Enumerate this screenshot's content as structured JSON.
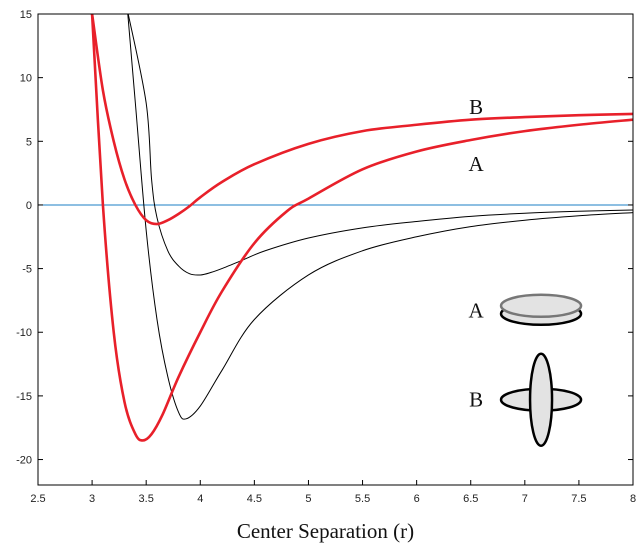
{
  "chart_data": {
    "type": "line",
    "title": "",
    "xlabel": "Center Separation (r)",
    "ylabel": "",
    "xlim": [
      2.5,
      8
    ],
    "ylim": [
      -22,
      15
    ],
    "xticks": [
      "2.5",
      "3",
      "3.5",
      "4",
      "4.5",
      "5",
      "5.5",
      "6",
      "6.5",
      "7",
      "7.5",
      "8"
    ],
    "yticks": [
      "15",
      "10",
      "5",
      "0",
      "-5",
      "-10",
      "-15",
      "-20"
    ],
    "grid": false,
    "zero_line": true,
    "series": [
      {
        "name": "B",
        "color": "#e8202a",
        "style": "thick",
        "x": [
          3.0,
          3.1,
          3.2,
          3.3,
          3.4,
          3.5,
          3.6,
          3.7,
          3.8,
          3.9,
          4.0,
          4.2,
          4.5,
          5.0,
          5.5,
          6.0,
          6.5,
          7.0,
          7.5,
          8.0
        ],
        "y": [
          15,
          9.0,
          5.0,
          2.0,
          0.0,
          -1.2,
          -1.5,
          -1.2,
          -0.7,
          -0.1,
          0.6,
          1.8,
          3.2,
          4.8,
          5.8,
          6.3,
          6.7,
          6.9,
          7.05,
          7.15
        ]
      },
      {
        "name": "A",
        "color": "#e8202a",
        "style": "thick",
        "x": [
          3.0,
          3.1,
          3.2,
          3.3,
          3.4,
          3.47,
          3.55,
          3.65,
          3.8,
          4.0,
          4.2,
          4.5,
          4.8,
          5.0,
          5.5,
          6.0,
          6.5,
          7.0,
          7.5,
          8.0
        ],
        "y": [
          15,
          0.0,
          -10.0,
          -15.5,
          -18.0,
          -18.5,
          -18.0,
          -16.5,
          -13.5,
          -10.0,
          -6.8,
          -3.0,
          -0.5,
          0.5,
          2.8,
          4.2,
          5.1,
          5.8,
          6.3,
          6.7
        ],
        "start_y": 15
      },
      {
        "name": "",
        "color": "#000000",
        "style": "thin",
        "x": [
          3.5,
          3.55,
          3.6,
          3.7,
          3.8,
          3.9,
          4.0,
          4.1,
          4.2,
          4.4,
          4.6,
          5.0,
          5.5,
          6.0,
          6.5,
          7.0,
          7.5,
          8.0
        ],
        "y": [
          8.0,
          2.0,
          -1.0,
          -3.6,
          -4.8,
          -5.4,
          -5.5,
          -5.3,
          -5.0,
          -4.3,
          -3.6,
          -2.6,
          -1.8,
          -1.3,
          -0.9,
          -0.65,
          -0.5,
          -0.4
        ],
        "start_x": 3.33
      },
      {
        "name": "",
        "color": "#000000",
        "style": "thin",
        "x": [
          3.33,
          3.4,
          3.5,
          3.6,
          3.7,
          3.8,
          3.87,
          4.0,
          4.2,
          4.5,
          5.0,
          5.5,
          6.0,
          6.5,
          7.0,
          7.5,
          8.0
        ],
        "y": [
          15,
          8.0,
          -2.0,
          -9.0,
          -13.5,
          -16.3,
          -16.8,
          -15.8,
          -13.0,
          -9.0,
          -5.5,
          -3.6,
          -2.5,
          -1.7,
          -1.2,
          -0.85,
          -0.6
        ]
      }
    ],
    "annotations": [
      {
        "text": "B",
        "x": 6.55,
        "y": 7.7
      },
      {
        "text": "A",
        "x": 6.55,
        "y": 3.2
      },
      {
        "text": "A",
        "x": 6.55,
        "y": -8.3
      },
      {
        "text": "B",
        "x": 6.55,
        "y": -15.3
      }
    ],
    "insets": [
      {
        "label": "A",
        "shape": "stacked-discs",
        "x": 7.15,
        "y": -8.0
      },
      {
        "label": "B",
        "shape": "crossed-ellipses",
        "x": 7.15,
        "y": -15.3
      }
    ]
  },
  "colors": {
    "thick": "#e8202a",
    "thin": "#000000",
    "zero_line": "#1b7fc4",
    "axis": "#000000",
    "disc_fill": "#e3e3e3",
    "disc_top_stroke": "#777777"
  }
}
